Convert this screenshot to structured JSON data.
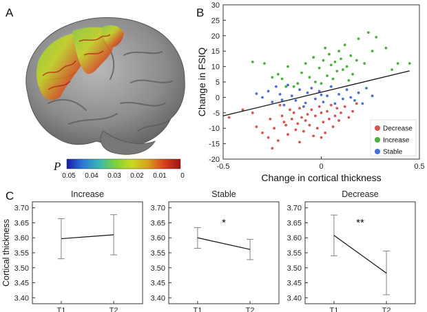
{
  "panel_labels": {
    "a": "A",
    "b": "B",
    "c": "C"
  },
  "brain": {
    "colorbar_symbol": "P",
    "colorbar_ticks": [
      "0.05",
      "0.04",
      "0.03",
      "0.02",
      "0.01",
      "0"
    ],
    "colorbar_colors": [
      "#1a1aa8",
      "#2a7ad8",
      "#37b8b0",
      "#7ed23a",
      "#c8d820",
      "#d9a020",
      "#d8401c",
      "#9c1414"
    ],
    "surface_color": "#8a8a8a",
    "icon": "brain-surface-render"
  },
  "chart_data": [
    {
      "type": "scatter",
      "xlabel": "Change in cortical thickness",
      "ylabel": "Change in FSIQ",
      "xlim": [
        -0.5,
        0.5
      ],
      "ylim": [
        -20,
        30
      ],
      "xticks": [
        "-0.5",
        "0",
        "0.5"
      ],
      "yticks": [
        "-20",
        "-15",
        "-10",
        "-5",
        "0",
        "5",
        "10",
        "15",
        "20",
        "25",
        "30"
      ],
      "legend_position": "bottom-right",
      "fit_line": {
        "x": [
          -0.5,
          0.45
        ],
        "y": [
          -6.0,
          8.6
        ]
      },
      "series": [
        {
          "name": "Decrease",
          "color": "#d9534f",
          "points": [
            [
              -0.47,
              -6.5
            ],
            [
              -0.4,
              -4.0
            ],
            [
              -0.33,
              -9.5
            ],
            [
              -0.3,
              -11.5
            ],
            [
              -0.27,
              -13.0
            ],
            [
              -0.25,
              -16.5
            ],
            [
              -0.24,
              -10.0
            ],
            [
              -0.22,
              -14.0
            ],
            [
              -0.2,
              -6.0
            ],
            [
              -0.19,
              -8.0
            ],
            [
              -0.18,
              -9.0
            ],
            [
              -0.17,
              -12.0
            ],
            [
              -0.16,
              -4.0
            ],
            [
              -0.15,
              -7.0
            ],
            [
              -0.14,
              -5.0
            ],
            [
              -0.13,
              -10.5
            ],
            [
              -0.12,
              -8.5
            ],
            [
              -0.11,
              -3.5
            ],
            [
              -0.1,
              -6.5
            ],
            [
              -0.09,
              -11.0
            ],
            [
              -0.08,
              -7.5
            ],
            [
              -0.07,
              -5.5
            ],
            [
              -0.06,
              -9.0
            ],
            [
              -0.05,
              -4.0
            ],
            [
              -0.04,
              -12.5
            ],
            [
              -0.03,
              -6.0
            ],
            [
              -0.02,
              -10.0
            ],
            [
              -0.01,
              -3.0
            ],
            [
              0.0,
              -5.0
            ],
            [
              0.01,
              -8.0
            ],
            [
              0.02,
              -11.5
            ],
            [
              0.03,
              -4.5
            ],
            [
              0.04,
              -7.0
            ],
            [
              0.05,
              -2.5
            ],
            [
              0.06,
              -9.5
            ],
            [
              0.07,
              -6.0
            ],
            [
              0.08,
              -3.5
            ],
            [
              0.09,
              -7.5
            ],
            [
              0.1,
              -5.0
            ],
            [
              0.12,
              -3.0
            ],
            [
              0.14,
              -6.5
            ],
            [
              0.16,
              -4.5
            ],
            [
              -0.21,
              -2.5
            ],
            [
              -0.26,
              -7.0
            ],
            [
              -0.35,
              -5.0
            ],
            [
              0.18,
              -2.0
            ],
            [
              -0.11,
              -14.5
            ],
            [
              0.0,
              -13.0
            ]
          ]
        },
        {
          "name": "Increase",
          "color": "#4caf3e",
          "points": [
            [
              -0.35,
              11.5
            ],
            [
              -0.29,
              11.0
            ],
            [
              -0.22,
              7.5
            ],
            [
              -0.2,
              6.0
            ],
            [
              -0.17,
              10.0
            ],
            [
              -0.14,
              3.5
            ],
            [
              -0.12,
              4.5
            ],
            [
              -0.1,
              8.0
            ],
            [
              -0.08,
              11.0
            ],
            [
              -0.06,
              6.5
            ],
            [
              -0.04,
              13.0
            ],
            [
              -0.03,
              5.0
            ],
            [
              -0.01,
              9.5
            ],
            [
              0.01,
              12.0
            ],
            [
              0.02,
              16.0
            ],
            [
              0.03,
              7.0
            ],
            [
              0.04,
              14.0
            ],
            [
              0.05,
              10.5
            ],
            [
              0.06,
              6.0
            ],
            [
              0.07,
              11.5
            ],
            [
              0.08,
              8.5
            ],
            [
              0.09,
              15.0
            ],
            [
              0.1,
              12.5
            ],
            [
              0.11,
              9.0
            ],
            [
              0.12,
              17.0
            ],
            [
              0.13,
              10.0
            ],
            [
              0.15,
              13.5
            ],
            [
              0.16,
              7.5
            ],
            [
              0.18,
              12.0
            ],
            [
              0.19,
              19.0
            ],
            [
              0.22,
              11.0
            ],
            [
              0.24,
              21.0
            ],
            [
              0.26,
              15.0
            ],
            [
              0.28,
              19.5
            ],
            [
              0.33,
              16.0
            ],
            [
              0.36,
              9.0
            ],
            [
              0.39,
              11.0
            ],
            [
              0.45,
              11.0
            ],
            [
              -0.25,
              6.5
            ],
            [
              0.0,
              4.5
            ],
            [
              -0.18,
              3.5
            ],
            [
              0.14,
              5.5
            ]
          ]
        },
        {
          "name": "Stable",
          "color": "#4a6fdc",
          "points": [
            [
              -0.3,
              0.0
            ],
            [
              -0.27,
              2.0
            ],
            [
              -0.25,
              -1.5
            ],
            [
              -0.23,
              3.5
            ],
            [
              -0.21,
              1.0
            ],
            [
              -0.19,
              -2.5
            ],
            [
              -0.17,
              4.0
            ],
            [
              -0.15,
              0.5
            ],
            [
              -0.13,
              -1.0
            ],
            [
              -0.11,
              2.5
            ],
            [
              -0.09,
              -3.0
            ],
            [
              -0.07,
              1.5
            ],
            [
              -0.05,
              3.0
            ],
            [
              -0.03,
              -0.5
            ],
            [
              -0.01,
              2.0
            ],
            [
              0.01,
              -1.5
            ],
            [
              0.03,
              0.5
            ],
            [
              0.05,
              3.5
            ],
            [
              0.07,
              -2.0
            ],
            [
              0.09,
              1.0
            ],
            [
              0.11,
              -0.5
            ],
            [
              0.13,
              2.5
            ],
            [
              0.15,
              0.0
            ],
            [
              0.17,
              -1.0
            ],
            [
              0.19,
              1.5
            ],
            [
              0.21,
              -2.0
            ],
            [
              0.23,
              3.0
            ],
            [
              -0.2,
              -0.8
            ],
            [
              -0.08,
              -1.8
            ],
            [
              0.0,
              0.8
            ],
            [
              -0.33,
              1.2
            ],
            [
              0.26,
              0.5
            ]
          ]
        }
      ]
    },
    {
      "type": "line",
      "title": "Increase",
      "ylabel": "Cortical thickness",
      "categories": [
        "T1",
        "T2"
      ],
      "ylim": [
        3.38,
        3.72
      ],
      "yticks": [
        "3.40",
        "3.45",
        "3.50",
        "3.55",
        "3.60",
        "3.65",
        "3.70"
      ],
      "values": [
        3.597,
        3.61
      ],
      "error_low": [
        3.53,
        3.543
      ],
      "error_high": [
        3.664,
        3.677
      ],
      "annotation": ""
    },
    {
      "type": "line",
      "title": "Stable",
      "categories": [
        "T1",
        "T2"
      ],
      "ylim": [
        3.38,
        3.72
      ],
      "yticks": [
        "3.40",
        "3.45",
        "3.50",
        "3.55",
        "3.60",
        "3.65",
        "3.70"
      ],
      "values": [
        3.6,
        3.561
      ],
      "error_low": [
        3.565,
        3.527
      ],
      "error_high": [
        3.634,
        3.595
      ],
      "annotation": "*"
    },
    {
      "type": "line",
      "title": "Decrease",
      "categories": [
        "T1",
        "T2"
      ],
      "ylim": [
        3.38,
        3.72
      ],
      "yticks": [
        "3.40",
        "3.45",
        "3.50",
        "3.55",
        "3.60",
        "3.65",
        "3.70"
      ],
      "values": [
        3.608,
        3.482
      ],
      "error_low": [
        3.54,
        3.41
      ],
      "error_high": [
        3.676,
        3.556
      ],
      "annotation": "**"
    }
  ]
}
